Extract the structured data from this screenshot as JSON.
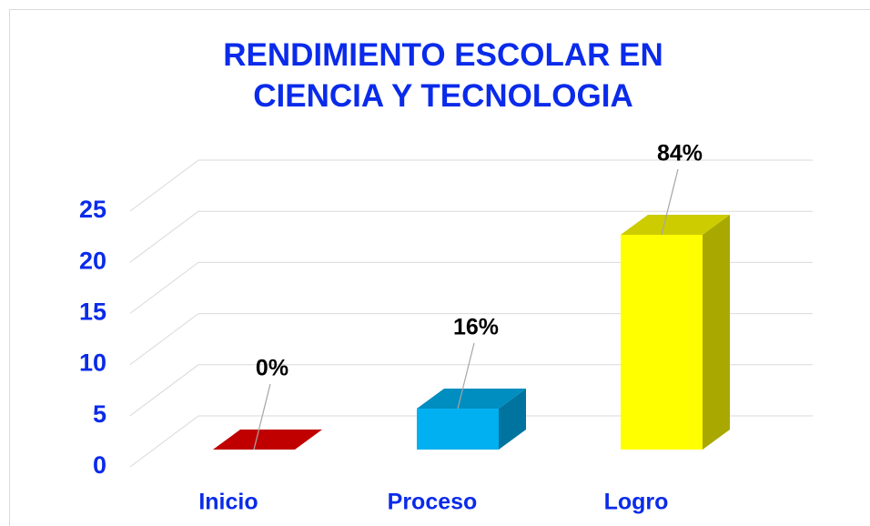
{
  "chart_data": {
    "type": "bar3d",
    "title": "RENDIMIENTO ESCOLAR EN CIENCIA Y TECNOLOGIA",
    "categories": [
      "Inicio",
      "Proceso",
      "Logro"
    ],
    "values": [
      0,
      4,
      21
    ],
    "value_labels": [
      "0%",
      "16%",
      "84%"
    ],
    "colors": [
      "#c00000",
      "#00b0f0",
      "#ffff00"
    ],
    "ylim": [
      0,
      25
    ],
    "yticks": [
      0,
      5,
      10,
      15,
      20,
      25
    ],
    "grid": true
  }
}
